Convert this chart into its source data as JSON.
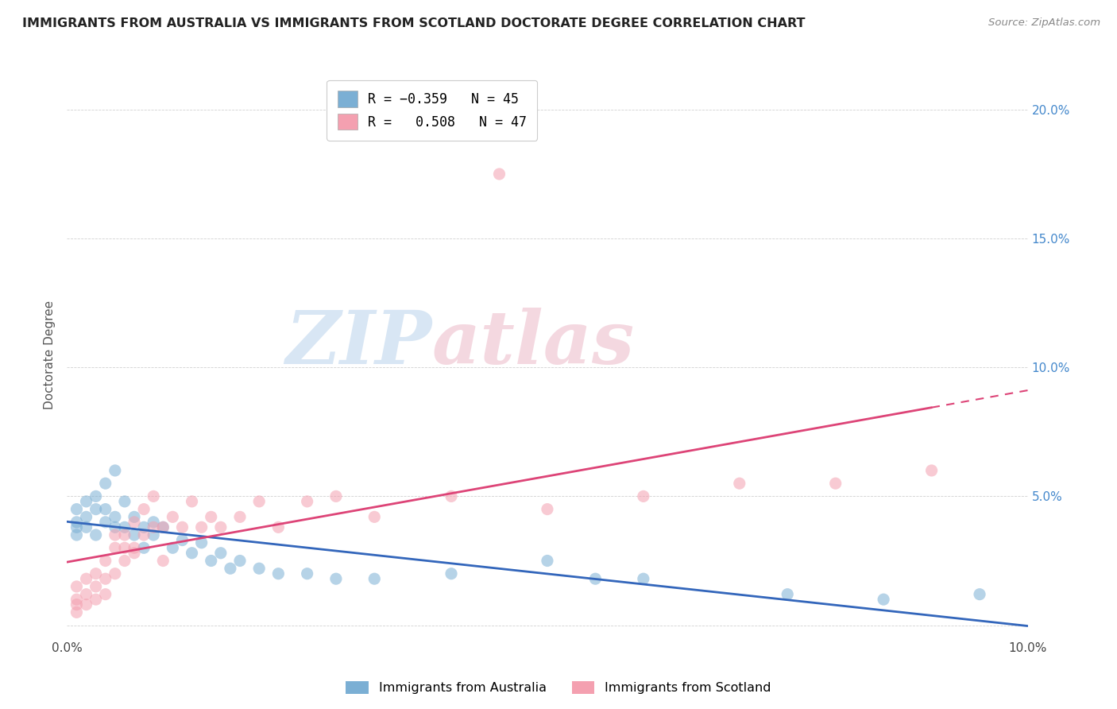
{
  "title": "IMMIGRANTS FROM AUSTRALIA VS IMMIGRANTS FROM SCOTLAND DOCTORATE DEGREE CORRELATION CHART",
  "source": "Source: ZipAtlas.com",
  "ylabel": "Doctorate Degree",
  "xlim": [
    0.0,
    0.1
  ],
  "ylim": [
    -0.005,
    0.215
  ],
  "ytick_vals": [
    0.0,
    0.05,
    0.1,
    0.15,
    0.2
  ],
  "color_australia": "#7BAFD4",
  "color_scotland": "#F4A0B0",
  "color_trend_australia": "#3366BB",
  "color_trend_scotland": "#DD4477",
  "watermark_color": "#D8E8F0",
  "watermark_pink": "#F5D0D8",
  "australia_x": [
    0.001,
    0.001,
    0.001,
    0.001,
    0.002,
    0.002,
    0.002,
    0.003,
    0.003,
    0.003,
    0.004,
    0.004,
    0.004,
    0.005,
    0.005,
    0.005,
    0.006,
    0.006,
    0.007,
    0.007,
    0.008,
    0.008,
    0.009,
    0.009,
    0.01,
    0.011,
    0.012,
    0.013,
    0.014,
    0.015,
    0.016,
    0.017,
    0.018,
    0.02,
    0.022,
    0.025,
    0.028,
    0.032,
    0.04,
    0.05,
    0.055,
    0.06,
    0.075,
    0.085,
    0.095
  ],
  "australia_y": [
    0.04,
    0.045,
    0.038,
    0.035,
    0.048,
    0.042,
    0.038,
    0.05,
    0.045,
    0.035,
    0.055,
    0.045,
    0.04,
    0.06,
    0.042,
    0.038,
    0.048,
    0.038,
    0.042,
    0.035,
    0.038,
    0.03,
    0.04,
    0.035,
    0.038,
    0.03,
    0.033,
    0.028,
    0.032,
    0.025,
    0.028,
    0.022,
    0.025,
    0.022,
    0.02,
    0.02,
    0.018,
    0.018,
    0.02,
    0.025,
    0.018,
    0.018,
    0.012,
    0.01,
    0.012
  ],
  "scotland_x": [
    0.001,
    0.001,
    0.001,
    0.001,
    0.002,
    0.002,
    0.002,
    0.003,
    0.003,
    0.003,
    0.004,
    0.004,
    0.004,
    0.005,
    0.005,
    0.006,
    0.006,
    0.007,
    0.007,
    0.008,
    0.008,
    0.009,
    0.009,
    0.01,
    0.01,
    0.011,
    0.012,
    0.013,
    0.014,
    0.015,
    0.016,
    0.018,
    0.02,
    0.022,
    0.025,
    0.028,
    0.032,
    0.04,
    0.05,
    0.06,
    0.07,
    0.08,
    0.09,
    0.005,
    0.006,
    0.007,
    0.045
  ],
  "scotland_y": [
    0.005,
    0.01,
    0.008,
    0.015,
    0.012,
    0.018,
    0.008,
    0.02,
    0.015,
    0.01,
    0.025,
    0.018,
    0.012,
    0.03,
    0.02,
    0.035,
    0.025,
    0.04,
    0.03,
    0.045,
    0.035,
    0.05,
    0.038,
    0.038,
    0.025,
    0.042,
    0.038,
    0.048,
    0.038,
    0.042,
    0.038,
    0.042,
    0.048,
    0.038,
    0.048,
    0.05,
    0.042,
    0.05,
    0.045,
    0.05,
    0.055,
    0.055,
    0.06,
    0.035,
    0.03,
    0.028,
    0.175
  ]
}
